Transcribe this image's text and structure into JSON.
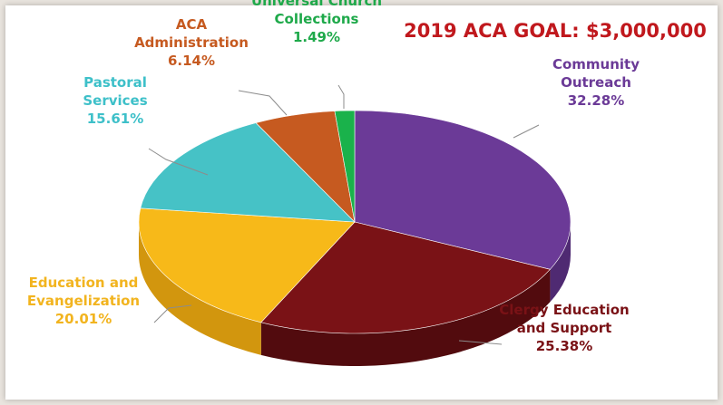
{
  "chart_data": {
    "type": "pie",
    "title": "2019 ACA GOAL: $3,000,000",
    "title_color": "#c0181d",
    "slices": [
      {
        "label_lines": [
          "Community",
          "Outreach"
        ],
        "value": 32.28,
        "value_text": "32.28%",
        "color": "#6b3a97",
        "side": "#4f2a72",
        "label_color": "#6b3a97"
      },
      {
        "label_lines": [
          "Clergy Education",
          "and Support"
        ],
        "value": 25.38,
        "value_text": "25.38%",
        "color": "#7a1216",
        "side": "#520b0e",
        "label_color": "#7a1216"
      },
      {
        "label_lines": [
          "Education and",
          "Evangelization"
        ],
        "value": 20.01,
        "value_text": "20.01%",
        "color": "#f7b919",
        "side": "#d2960e",
        "label_color": "#f2b41f"
      },
      {
        "label_lines": [
          "Pastoral",
          "Services"
        ],
        "value": 15.61,
        "value_text": "15.61%",
        "color": "#46c2c6",
        "side": "#2d9a9e",
        "label_color": "#3ec0c9"
      },
      {
        "label_lines": [
          "ACA",
          "Administration"
        ],
        "value": 6.14,
        "value_text": "6.14%",
        "color": "#c65a20",
        "side": "#9a4317",
        "label_color": "#c65a20"
      },
      {
        "label_lines": [
          "Universal Church",
          "Collections"
        ],
        "value": 1.49,
        "value_text": "1.49%",
        "color": "#1ab24b",
        "side": "#138537",
        "label_color": "#1ea94a"
      }
    ]
  }
}
